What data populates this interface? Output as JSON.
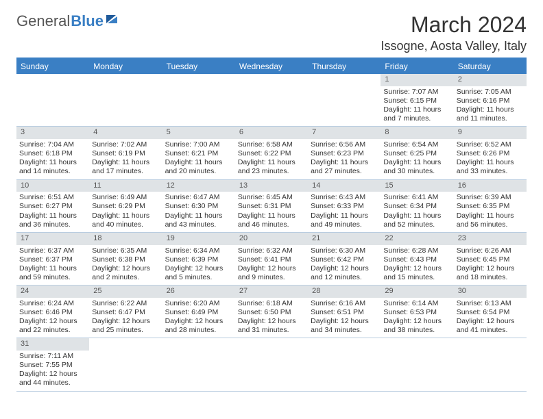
{
  "brand": {
    "part1": "General",
    "part2": "Blue"
  },
  "title": "March 2024",
  "location": "Issogne, Aosta Valley, Italy",
  "colors": {
    "header_bg": "#3a7fc4",
    "header_text": "#ffffff",
    "daynum_bg": "#dfe3e6",
    "border": "#b9cde0",
    "text": "#333333"
  },
  "day_headers": [
    "Sunday",
    "Monday",
    "Tuesday",
    "Wednesday",
    "Thursday",
    "Friday",
    "Saturday"
  ],
  "weeks": [
    [
      null,
      null,
      null,
      null,
      null,
      {
        "n": "1",
        "sr": "Sunrise: 7:07 AM",
        "ss": "Sunset: 6:15 PM",
        "d1": "Daylight: 11 hours",
        "d2": "and 7 minutes."
      },
      {
        "n": "2",
        "sr": "Sunrise: 7:05 AM",
        "ss": "Sunset: 6:16 PM",
        "d1": "Daylight: 11 hours",
        "d2": "and 11 minutes."
      }
    ],
    [
      {
        "n": "3",
        "sr": "Sunrise: 7:04 AM",
        "ss": "Sunset: 6:18 PM",
        "d1": "Daylight: 11 hours",
        "d2": "and 14 minutes."
      },
      {
        "n": "4",
        "sr": "Sunrise: 7:02 AM",
        "ss": "Sunset: 6:19 PM",
        "d1": "Daylight: 11 hours",
        "d2": "and 17 minutes."
      },
      {
        "n": "5",
        "sr": "Sunrise: 7:00 AM",
        "ss": "Sunset: 6:21 PM",
        "d1": "Daylight: 11 hours",
        "d2": "and 20 minutes."
      },
      {
        "n": "6",
        "sr": "Sunrise: 6:58 AM",
        "ss": "Sunset: 6:22 PM",
        "d1": "Daylight: 11 hours",
        "d2": "and 23 minutes."
      },
      {
        "n": "7",
        "sr": "Sunrise: 6:56 AM",
        "ss": "Sunset: 6:23 PM",
        "d1": "Daylight: 11 hours",
        "d2": "and 27 minutes."
      },
      {
        "n": "8",
        "sr": "Sunrise: 6:54 AM",
        "ss": "Sunset: 6:25 PM",
        "d1": "Daylight: 11 hours",
        "d2": "and 30 minutes."
      },
      {
        "n": "9",
        "sr": "Sunrise: 6:52 AM",
        "ss": "Sunset: 6:26 PM",
        "d1": "Daylight: 11 hours",
        "d2": "and 33 minutes."
      }
    ],
    [
      {
        "n": "10",
        "sr": "Sunrise: 6:51 AM",
        "ss": "Sunset: 6:27 PM",
        "d1": "Daylight: 11 hours",
        "d2": "and 36 minutes."
      },
      {
        "n": "11",
        "sr": "Sunrise: 6:49 AM",
        "ss": "Sunset: 6:29 PM",
        "d1": "Daylight: 11 hours",
        "d2": "and 40 minutes."
      },
      {
        "n": "12",
        "sr": "Sunrise: 6:47 AM",
        "ss": "Sunset: 6:30 PM",
        "d1": "Daylight: 11 hours",
        "d2": "and 43 minutes."
      },
      {
        "n": "13",
        "sr": "Sunrise: 6:45 AM",
        "ss": "Sunset: 6:31 PM",
        "d1": "Daylight: 11 hours",
        "d2": "and 46 minutes."
      },
      {
        "n": "14",
        "sr": "Sunrise: 6:43 AM",
        "ss": "Sunset: 6:33 PM",
        "d1": "Daylight: 11 hours",
        "d2": "and 49 minutes."
      },
      {
        "n": "15",
        "sr": "Sunrise: 6:41 AM",
        "ss": "Sunset: 6:34 PM",
        "d1": "Daylight: 11 hours",
        "d2": "and 52 minutes."
      },
      {
        "n": "16",
        "sr": "Sunrise: 6:39 AM",
        "ss": "Sunset: 6:35 PM",
        "d1": "Daylight: 11 hours",
        "d2": "and 56 minutes."
      }
    ],
    [
      {
        "n": "17",
        "sr": "Sunrise: 6:37 AM",
        "ss": "Sunset: 6:37 PM",
        "d1": "Daylight: 11 hours",
        "d2": "and 59 minutes."
      },
      {
        "n": "18",
        "sr": "Sunrise: 6:35 AM",
        "ss": "Sunset: 6:38 PM",
        "d1": "Daylight: 12 hours",
        "d2": "and 2 minutes."
      },
      {
        "n": "19",
        "sr": "Sunrise: 6:34 AM",
        "ss": "Sunset: 6:39 PM",
        "d1": "Daylight: 12 hours",
        "d2": "and 5 minutes."
      },
      {
        "n": "20",
        "sr": "Sunrise: 6:32 AM",
        "ss": "Sunset: 6:41 PM",
        "d1": "Daylight: 12 hours",
        "d2": "and 9 minutes."
      },
      {
        "n": "21",
        "sr": "Sunrise: 6:30 AM",
        "ss": "Sunset: 6:42 PM",
        "d1": "Daylight: 12 hours",
        "d2": "and 12 minutes."
      },
      {
        "n": "22",
        "sr": "Sunrise: 6:28 AM",
        "ss": "Sunset: 6:43 PM",
        "d1": "Daylight: 12 hours",
        "d2": "and 15 minutes."
      },
      {
        "n": "23",
        "sr": "Sunrise: 6:26 AM",
        "ss": "Sunset: 6:45 PM",
        "d1": "Daylight: 12 hours",
        "d2": "and 18 minutes."
      }
    ],
    [
      {
        "n": "24",
        "sr": "Sunrise: 6:24 AM",
        "ss": "Sunset: 6:46 PM",
        "d1": "Daylight: 12 hours",
        "d2": "and 22 minutes."
      },
      {
        "n": "25",
        "sr": "Sunrise: 6:22 AM",
        "ss": "Sunset: 6:47 PM",
        "d1": "Daylight: 12 hours",
        "d2": "and 25 minutes."
      },
      {
        "n": "26",
        "sr": "Sunrise: 6:20 AM",
        "ss": "Sunset: 6:49 PM",
        "d1": "Daylight: 12 hours",
        "d2": "and 28 minutes."
      },
      {
        "n": "27",
        "sr": "Sunrise: 6:18 AM",
        "ss": "Sunset: 6:50 PM",
        "d1": "Daylight: 12 hours",
        "d2": "and 31 minutes."
      },
      {
        "n": "28",
        "sr": "Sunrise: 6:16 AM",
        "ss": "Sunset: 6:51 PM",
        "d1": "Daylight: 12 hours",
        "d2": "and 34 minutes."
      },
      {
        "n": "29",
        "sr": "Sunrise: 6:14 AM",
        "ss": "Sunset: 6:53 PM",
        "d1": "Daylight: 12 hours",
        "d2": "and 38 minutes."
      },
      {
        "n": "30",
        "sr": "Sunrise: 6:13 AM",
        "ss": "Sunset: 6:54 PM",
        "d1": "Daylight: 12 hours",
        "d2": "and 41 minutes."
      }
    ],
    [
      {
        "n": "31",
        "sr": "Sunrise: 7:11 AM",
        "ss": "Sunset: 7:55 PM",
        "d1": "Daylight: 12 hours",
        "d2": "and 44 minutes."
      },
      null,
      null,
      null,
      null,
      null,
      null
    ]
  ]
}
